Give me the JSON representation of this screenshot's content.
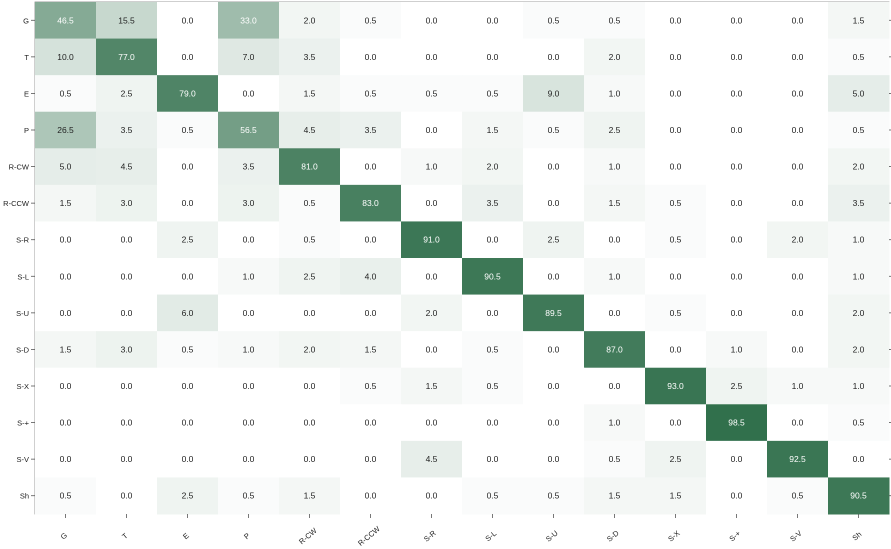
{
  "chart_data": {
    "type": "heatmap",
    "row_labels": [
      "G",
      "T",
      "E",
      "P",
      "R-CW",
      "R-CCW",
      "S-R",
      "S-L",
      "S-U",
      "S-D",
      "S-X",
      "S-+",
      "S-V",
      "Sh"
    ],
    "col_labels": [
      "G",
      "T",
      "E",
      "P",
      "R-CW",
      "R-CCW",
      "S-R",
      "S-L",
      "S-U",
      "S-D",
      "S-X",
      "S-+",
      "S-V",
      "Sh"
    ],
    "values": [
      [
        46.5,
        15.5,
        0.0,
        33.0,
        2.0,
        0.5,
        0.0,
        0.0,
        0.5,
        0.5,
        0.0,
        0.0,
        0.0,
        1.5
      ],
      [
        10.0,
        77.0,
        0.0,
        7.0,
        3.5,
        0.0,
        0.0,
        0.0,
        0.0,
        2.0,
        0.0,
        0.0,
        0.0,
        0.5
      ],
      [
        0.5,
        2.5,
        79.0,
        0.0,
        1.5,
        0.5,
        0.5,
        0.5,
        9.0,
        1.0,
        0.0,
        0.0,
        0.0,
        5.0
      ],
      [
        26.5,
        3.5,
        0.5,
        56.5,
        4.5,
        3.5,
        0.0,
        1.5,
        0.5,
        2.5,
        0.0,
        0.0,
        0.0,
        0.5
      ],
      [
        5.0,
        4.5,
        0.0,
        3.5,
        81.0,
        0.0,
        1.0,
        2.0,
        0.0,
        1.0,
        0.0,
        0.0,
        0.0,
        2.0
      ],
      [
        1.5,
        3.0,
        0.0,
        3.0,
        0.5,
        83.0,
        0.0,
        3.5,
        0.0,
        1.5,
        0.5,
        0.0,
        0.0,
        3.5
      ],
      [
        0.0,
        0.0,
        2.5,
        0.0,
        0.5,
        0.0,
        91.0,
        0.0,
        2.5,
        0.0,
        0.5,
        0.0,
        2.0,
        1.0
      ],
      [
        0.0,
        0.0,
        0.0,
        1.0,
        2.5,
        4.0,
        0.0,
        90.5,
        0.0,
        1.0,
        0.0,
        0.0,
        0.0,
        1.0
      ],
      [
        0.0,
        0.0,
        6.0,
        0.0,
        0.0,
        0.0,
        2.0,
        0.0,
        89.5,
        0.0,
        0.5,
        0.0,
        0.0,
        2.0
      ],
      [
        1.5,
        3.0,
        0.5,
        1.0,
        2.0,
        1.5,
        0.0,
        0.5,
        0.0,
        87.0,
        0.0,
        1.0,
        0.0,
        2.0
      ],
      [
        0.0,
        0.0,
        0.0,
        0.0,
        0.0,
        0.5,
        1.5,
        0.5,
        0.0,
        0.0,
        93.0,
        2.5,
        1.0,
        1.0
      ],
      [
        0.0,
        0.0,
        0.0,
        0.0,
        0.0,
        0.0,
        0.0,
        0.0,
        0.0,
        1.0,
        0.0,
        98.5,
        0.0,
        0.5
      ],
      [
        0.0,
        0.0,
        0.0,
        0.0,
        0.0,
        0.0,
        4.5,
        0.0,
        0.0,
        0.5,
        2.5,
        0.0,
        92.5,
        0.0
      ],
      [
        0.5,
        0.0,
        2.5,
        0.5,
        1.5,
        0.0,
        0.0,
        0.5,
        0.5,
        1.5,
        1.5,
        0.0,
        0.5,
        90.5
      ]
    ],
    "range": [
      0,
      100
    ],
    "colors": {
      "low": "#ffffff",
      "high": "#2f6e4a",
      "text_dark": "#222222",
      "text_light": "#ffffff",
      "axis": "#555555"
    },
    "title": "",
    "xlabel": "",
    "ylabel": "",
    "grid": false,
    "legend": "none"
  }
}
